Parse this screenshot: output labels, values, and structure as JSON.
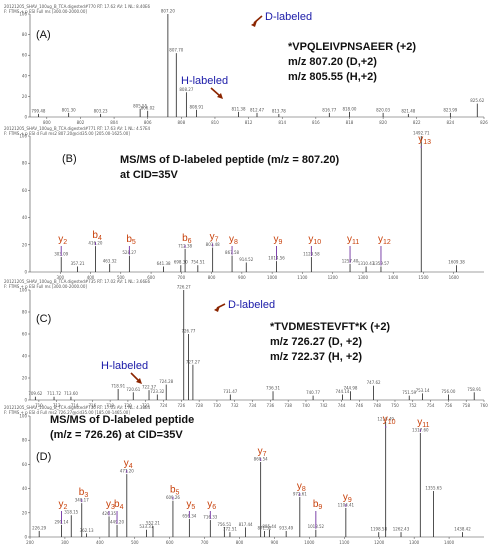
{
  "colors": {
    "peak": "#222222",
    "frag_line_b": "#7030a0",
    "frag_line_y": "#7030a0",
    "frag_text": "#c8400a",
    "h_label": "#2b2bb8",
    "arrow": "#8b2500"
  },
  "chart_data": [
    {
      "panel": "(A)",
      "type": "bar",
      "header": [
        "20121205_SHAV_100ug_B_TCA.digested#770 RT: 17.62 AV: 1 NL: 8.40E6",
        "F: FTMS + p ESI Full ms [300.00-2000.00]"
      ],
      "annotation_lines": [
        "*VPQLEIVPNSAEER (+2)",
        "m/z 807.20 (D,+2)",
        "m/z 805.55 (H,+2)"
      ],
      "labels": {
        "d_labeled": "D-labeled",
        "h_labeled": "H-labeled"
      },
      "xlim": [
        799,
        826
      ],
      "ylim": [
        0,
        100
      ],
      "xticks": [
        800,
        802,
        804,
        806,
        808,
        810,
        812,
        814,
        816,
        818,
        820,
        822,
        824,
        826
      ],
      "x": [
        799.5,
        801.3,
        803.2,
        805.55,
        806.0,
        807.2,
        807.7,
        808.3,
        808.9,
        811.4,
        812.5,
        813.8,
        816.8,
        818.0,
        820.0,
        821.5,
        824.0,
        825.6
      ],
      "values": [
        3,
        4,
        3,
        8,
        6,
        100,
        62,
        24,
        7,
        5,
        4,
        3,
        4,
        5,
        4,
        3,
        4,
        13
      ],
      "peak_labels": [
        "799.48",
        "801.30",
        "803.23",
        "805.55",
        "806.02",
        "807.20",
        "807.70",
        "808.27",
        "808.91",
        "811.38",
        "812.47",
        "813.78",
        "816.77",
        "818.00",
        "820.03",
        "821.48",
        "823.99",
        "825.62"
      ]
    },
    {
      "panel": "(B)",
      "type": "bar",
      "header": [
        "20121205_SHAV_100ug_B_TCA.digested#771 RT: 17.63 AV: 1 NL: 4.57E4",
        "F: FTMS + p ESI d Full ms2 807.20@cid35.00 [205.00-1625.00]"
      ],
      "annotation_lines": [
        "MS/MS of D-labeled peptide (m/z = 807.20)",
        "at CID=35V"
      ],
      "xlim": [
        200,
        1700
      ],
      "ylim": [
        0,
        100
      ],
      "xticks": [
        300,
        400,
        500,
        600,
        700,
        800,
        900,
        1000,
        1100,
        1200,
        1300,
        1400,
        1500,
        1600
      ],
      "x": [
        303.1,
        357.2,
        416.2,
        463.3,
        528.3,
        641.4,
        698.3,
        712.4,
        754.5,
        803.5,
        867.6,
        914.5,
        1014.6,
        1129.6,
        1257.4,
        1310.4,
        1359.6,
        1492.7,
        1609.4
      ],
      "values": [
        11,
        4,
        19,
        6,
        12,
        4,
        5,
        17,
        5,
        18,
        12,
        7,
        8,
        11,
        6,
        4,
        4,
        100,
        5
      ],
      "peak_labels": [
        "303.09",
        "357.21",
        "416.20",
        "463.32",
        "528.27",
        "641.38",
        "698.30",
        "712.38",
        "754.51",
        "803.48",
        "867.58",
        "914.52",
        "1014.56",
        "1129.58",
        "1257.40",
        "1310.43",
        "1359.57",
        "1492.71",
        "1609.38"
      ],
      "fragments": [
        {
          "label": "y2",
          "ion": "y",
          "x": 303.1
        },
        {
          "label": "b4",
          "ion": "b",
          "x": 416.2
        },
        {
          "label": "b5",
          "ion": "b",
          "x": 528.3
        },
        {
          "label": "b6",
          "ion": "b",
          "x": 712.4
        },
        {
          "label": "y7",
          "ion": "y",
          "x": 803.5
        },
        {
          "label": "y8",
          "ion": "y",
          "x": 867.6
        },
        {
          "label": "y9",
          "ion": "y",
          "x": 1014.6
        },
        {
          "label": "y10",
          "ion": "y",
          "x": 1129.6
        },
        {
          "label": "y11",
          "ion": "y",
          "x": 1257.4
        },
        {
          "label": "y12",
          "ion": "y",
          "x": 1359.6
        },
        {
          "label": "y13",
          "ion": "y",
          "x": 1492.7
        }
      ]
    },
    {
      "panel": "(C)",
      "type": "bar",
      "header": [
        "20121205_SHAV_100ug_B_TCA.digested#735 RT: 17.02 AV: 1 NL: 3.66E6",
        "F: FTMS + p ESI Full ms [300.00-2000.00]"
      ],
      "annotation_lines": [
        "*TVDMESTEVFT*K (+2)",
        "m/z 726.27 (D, +2)",
        "m/z 722.37 (H, +2)"
      ],
      "labels": {
        "d_labeled": "D-labeled",
        "h_labeled": "H-labeled"
      },
      "xlim": [
        709,
        760
      ],
      "ylim": [
        0,
        100
      ],
      "xticks": [
        710,
        712,
        714,
        716,
        718,
        720,
        722,
        724,
        726,
        728,
        730,
        732,
        734,
        736,
        738,
        740,
        742,
        744,
        746,
        748,
        750,
        752,
        754,
        756,
        758,
        760
      ],
      "x": [
        709.6,
        711.7,
        713.6,
        718.9,
        720.6,
        722.37,
        723.3,
        724.3,
        726.27,
        726.8,
        727.3,
        731.5,
        736.3,
        740.8,
        744.1,
        745.0,
        747.6,
        751.6,
        753.1,
        756.0,
        758.9
      ],
      "values": [
        3,
        3,
        3,
        10,
        7,
        9,
        5,
        14,
        100,
        60,
        32,
        5,
        8,
        4,
        5,
        8,
        13,
        4,
        6,
        5,
        7
      ],
      "peak_labels": [
        "709.62",
        "711.72",
        "713.60",
        "718.91",
        "720.61",
        "722.37",
        "723.32",
        "724.28",
        "726.27",
        "726.77",
        "727.27",
        "731.47",
        "736.31",
        "740.77",
        "744.14",
        "744.98",
        "747.62",
        "751.59",
        "753.14",
        "756.00",
        "758.91"
      ]
    },
    {
      "panel": "(D)",
      "type": "bar",
      "header": [
        "20121205_SHAV_100ug_B_TCA.digested#736 RT: 17.03 AV: 1 NL: 4.38E4",
        "F: FTMS + p ESI d Full ms2 726.27@cid35.00 [185.00-1465.00]"
      ],
      "annotation_lines": [
        "MS/MS of D-labeled peptide",
        "(m/z = 726.26) at CID=35V"
      ],
      "xlim": [
        200,
        1500
      ],
      "ylim": [
        0,
        100
      ],
      "xticks": [
        200,
        300,
        400,
        500,
        600,
        700,
        800,
        900,
        1000,
        1100,
        1200,
        1300,
        1400
      ],
      "x": [
        226.3,
        290.1,
        318.1,
        348.2,
        362.1,
        426.3,
        449.2,
        477.2,
        533.3,
        552.2,
        609.3,
        656.3,
        716.3,
        756.5,
        772.5,
        817.4,
        860.5,
        871.3,
        885.4,
        933.5,
        972.6,
        1018.5,
        1104.4,
        1198.6,
        1218.5,
        1262.4,
        1317.6,
        1355.7,
        1438.4
      ],
      "values": [
        5,
        10,
        18,
        28,
        3,
        17,
        10,
        52,
        6,
        9,
        30,
        15,
        14,
        8,
        4,
        8,
        62,
        5,
        6,
        5,
        33,
        6,
        24,
        4,
        95,
        4,
        86,
        38,
        4
      ],
      "peak_labels": [
        "226.29",
        "290.14",
        "318.15",
        "348.17",
        "362.13",
        "426.35",
        "449.20",
        "477.20",
        "533.31",
        "552.21",
        "609.26",
        "656.34",
        "716.33",
        "756.51",
        "772.51",
        "817.44",
        "860.54",
        "871.32",
        "885.44",
        "933.49",
        "972.61",
        "1018.52",
        "1104.41",
        "1198.58",
        "1218.49",
        "1262.43",
        "1317.60",
        "1355.65",
        "1438.42"
      ],
      "fragments": [
        {
          "label": "y2",
          "ion": "y",
          "x": 290.1
        },
        {
          "label": "b3",
          "ion": "b",
          "x": 348.2
        },
        {
          "label": "y3",
          "ion": "y",
          "x": 426.3
        },
        {
          "label": "b4",
          "ion": "b",
          "x": 449.2
        },
        {
          "label": "y4",
          "ion": "y",
          "x": 477.2
        },
        {
          "label": "b5",
          "ion": "b",
          "x": 609.3
        },
        {
          "label": "y5",
          "ion": "y",
          "x": 656.3
        },
        {
          "label": "y6",
          "ion": "y",
          "x": 716.3
        },
        {
          "label": "y7",
          "ion": "y",
          "x": 860.5
        },
        {
          "label": "y8",
          "ion": "y",
          "x": 972.6
        },
        {
          "label": "b9",
          "ion": "b",
          "x": 1018.5
        },
        {
          "label": "y9",
          "ion": "y",
          "x": 1104.4
        },
        {
          "label": "y10",
          "ion": "y",
          "x": 1218.5
        },
        {
          "label": "y11",
          "ion": "y",
          "x": 1317.6
        }
      ]
    }
  ]
}
